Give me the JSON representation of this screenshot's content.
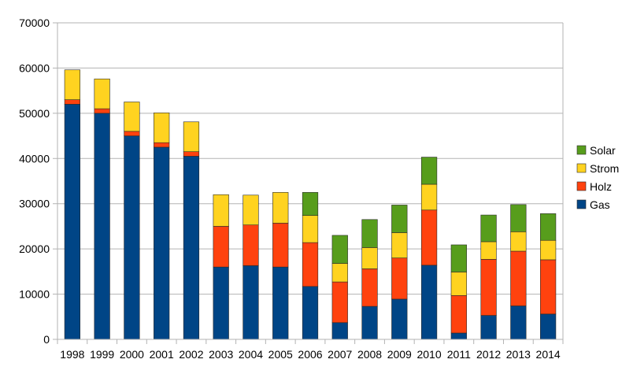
{
  "chart_data": {
    "type": "bar",
    "stacked": true,
    "categories": [
      "1998",
      "1999",
      "2000",
      "2001",
      "2002",
      "2003",
      "2004",
      "2005",
      "2006",
      "2007",
      "2008",
      "2009",
      "2010",
      "2011",
      "2012",
      "2013",
      "2014"
    ],
    "series": [
      {
        "name": "Gas",
        "color": "#004586",
        "values": [
          52000,
          50000,
          45000,
          42500,
          40500,
          16000,
          16300,
          16000,
          11700,
          3700,
          7300,
          8900,
          16400,
          1400,
          5300,
          7400,
          5600
        ]
      },
      {
        "name": "Holz",
        "color": "#ff420e",
        "values": [
          1000,
          1000,
          1000,
          1000,
          1000,
          9000,
          9000,
          9700,
          9700,
          9000,
          8300,
          9100,
          12200,
          8300,
          12400,
          12100,
          12000
        ]
      },
      {
        "name": "Strom",
        "color": "#ffd320",
        "values": [
          6600,
          6600,
          6500,
          6600,
          6600,
          7000,
          6600,
          6800,
          6000,
          4100,
          4700,
          5600,
          5700,
          5200,
          3900,
          4300,
          4300
        ]
      },
      {
        "name": "Solar",
        "color": "#579d1c",
        "values": [
          0,
          0,
          0,
          0,
          0,
          0,
          0,
          0,
          5100,
          6200,
          6200,
          6100,
          6000,
          6000,
          5900,
          6000,
          5900
        ]
      }
    ],
    "ylim": [
      0,
      70000
    ],
    "yticks": [
      "0",
      "10000",
      "20000",
      "30000",
      "40000",
      "50000",
      "60000",
      "70000"
    ],
    "grid": true,
    "legend_position": "right",
    "legend_order": [
      "Solar",
      "Strom",
      "Holz",
      "Gas"
    ]
  }
}
